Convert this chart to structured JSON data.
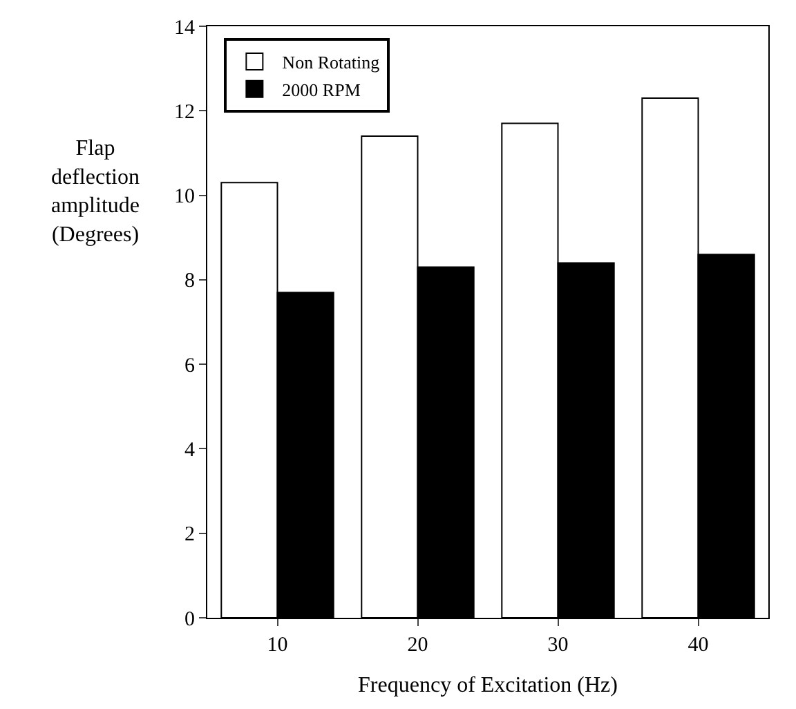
{
  "chart_data": {
    "type": "bar",
    "xlabel": "Frequency of Excitation (Hz)",
    "ylabel": "Flap\ndeflection\namplitude\n(Degrees)",
    "categories": [
      "10",
      "20",
      "30",
      "40"
    ],
    "series": [
      {
        "name": "Non Rotating",
        "color": "#ffffff",
        "values": [
          10.3,
          11.4,
          11.7,
          12.3
        ]
      },
      {
        "name": "2000 RPM",
        "color": "#000000",
        "values": [
          7.7,
          8.3,
          8.4,
          8.6
        ]
      }
    ],
    "ylim": [
      0,
      14
    ],
    "yticks": [
      0,
      2,
      4,
      6,
      8,
      10,
      12,
      14
    ],
    "grid": false,
    "legend": "top left"
  }
}
